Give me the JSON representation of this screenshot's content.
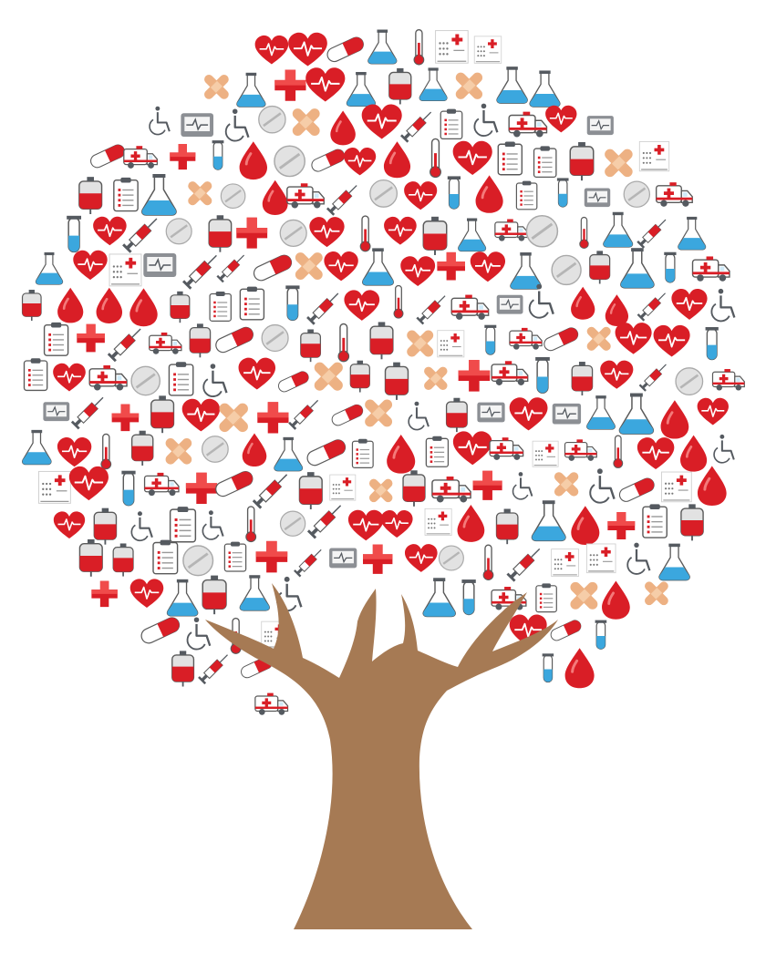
{
  "illustration": {
    "subject": "medical-icon-tree",
    "trunk_color": "#A67A54",
    "icon_palette": {
      "red": "#D91E26",
      "light_red": "#F04B4B",
      "grey": "#8C8F94",
      "dark_grey": "#555A60",
      "light_grey": "#E2E2E2",
      "blue": "#3BA7DE",
      "light_blue": "#CFEAF8",
      "bandage": "#EDB183",
      "white": "#FFFFFF",
      "outline": "#5A5A5A"
    },
    "icon_types": [
      "blood-drop-icon",
      "heartbeat-heart-icon",
      "red-cross-icon",
      "ambulance-icon",
      "capsule-pill-icon",
      "round-tablet-icon",
      "test-tube-icon",
      "lab-flask-icon",
      "thermometer-icon",
      "syringe-icon",
      "bandage-icon",
      "wheelchair-icon",
      "blood-bag-icon",
      "heart-monitor-icon",
      "clipboard-icon",
      "prescription-chart-icon"
    ]
  }
}
